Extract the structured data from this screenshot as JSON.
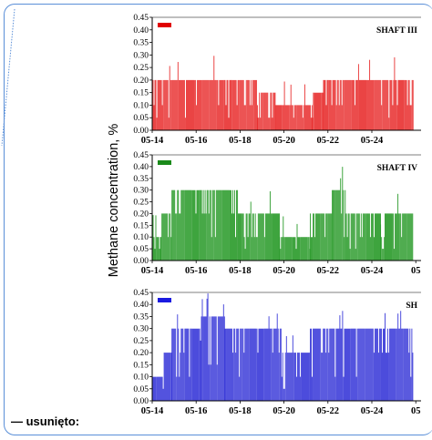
{
  "ylabel": "Methane concentration, %",
  "footer_note": "— usunięto:",
  "chart_data": [
    {
      "type": "bar",
      "title": "SHAFT III",
      "color": "#e83030",
      "legend_color": "#e00000",
      "ylim": [
        0,
        0.45
      ],
      "yticks": [
        "0.00",
        "0.05",
        "0.10",
        "0.15",
        "0.20",
        "0.25",
        "0.30",
        "0.35",
        "0.40",
        "0.45"
      ],
      "xticks": [
        "05-14",
        "05-16",
        "05-18",
        "05-20",
        "05-22",
        "05-24"
      ],
      "segments": [
        {
          "from": "05-14",
          "to": "05-18.8",
          "value": 0.2
        },
        {
          "from": "05-18.8",
          "to": "05-19.6",
          "value": 0.15
        },
        {
          "from": "05-19.6",
          "to": "05-21.3",
          "value": 0.1
        },
        {
          "from": "05-21.3",
          "to": "05-21.8",
          "value": 0.15
        },
        {
          "from": "05-21.8",
          "to": "05-25.9",
          "value": 0.2
        }
      ]
    },
    {
      "type": "bar",
      "title": "SHAFT IV",
      "color": "#2a9a2a",
      "legend_color": "#1a8a1a",
      "ylim": [
        0,
        0.45
      ],
      "yticks": [
        "0.00",
        "0.05",
        "0.10",
        "0.15",
        "0.20",
        "0.25",
        "0.30",
        "0.35",
        "0.40",
        "0.45"
      ],
      "xticks": [
        "05-14",
        "05-16",
        "05-18",
        "05-20",
        "05-22",
        "05-24",
        "05"
      ],
      "segments": [
        {
          "from": "05-14",
          "to": "05-14.4",
          "value": 0.1
        },
        {
          "from": "05-14.4",
          "to": "05-14.9",
          "value": 0.2
        },
        {
          "from": "05-14.9",
          "to": "05-17.9",
          "value": 0.3
        },
        {
          "from": "05-17.9",
          "to": "05-19.8",
          "value": 0.2
        },
        {
          "from": "05-19.8",
          "to": "05-21.2",
          "value": 0.1
        },
        {
          "from": "05-21.2",
          "to": "05-22.2",
          "value": 0.2
        },
        {
          "from": "05-22.2",
          "to": "05-22.8",
          "value": 0.3
        },
        {
          "from": "05-22.8",
          "to": "05-24.4",
          "value": 0.2
        },
        {
          "from": "05-24.4",
          "to": "05-24.6",
          "value": 0.1
        },
        {
          "from": "05-24.6",
          "to": "05-25.9",
          "value": 0.2
        }
      ]
    },
    {
      "type": "bar",
      "title": "SH",
      "color": "#3838d8",
      "legend_color": "#1a1ae0",
      "ylim": [
        0,
        0.45
      ],
      "yticks": [
        "0.00",
        "0.05",
        "0.10",
        "0.15",
        "0.20",
        "0.25",
        "0.30",
        "0.35",
        "0.40",
        "0.45"
      ],
      "xticks": [
        "05-14",
        "05-16",
        "05-18",
        "05-20",
        "05-22",
        "05-24",
        "05"
      ],
      "segments": [
        {
          "from": "05-14",
          "to": "05-14.5",
          "value": 0.1
        },
        {
          "from": "05-14.5",
          "to": "05-14.9",
          "value": 0.2
        },
        {
          "from": "05-14.9",
          "to": "05-16.2",
          "value": 0.3
        },
        {
          "from": "05-16.2",
          "to": "05-17.3",
          "value": 0.35
        },
        {
          "from": "05-17.3",
          "to": "05-19.9",
          "value": 0.3
        },
        {
          "from": "05-19.9",
          "to": "05-21.2",
          "value": 0.2
        },
        {
          "from": "05-21.2",
          "to": "05-25.9",
          "value": 0.3
        }
      ]
    }
  ]
}
